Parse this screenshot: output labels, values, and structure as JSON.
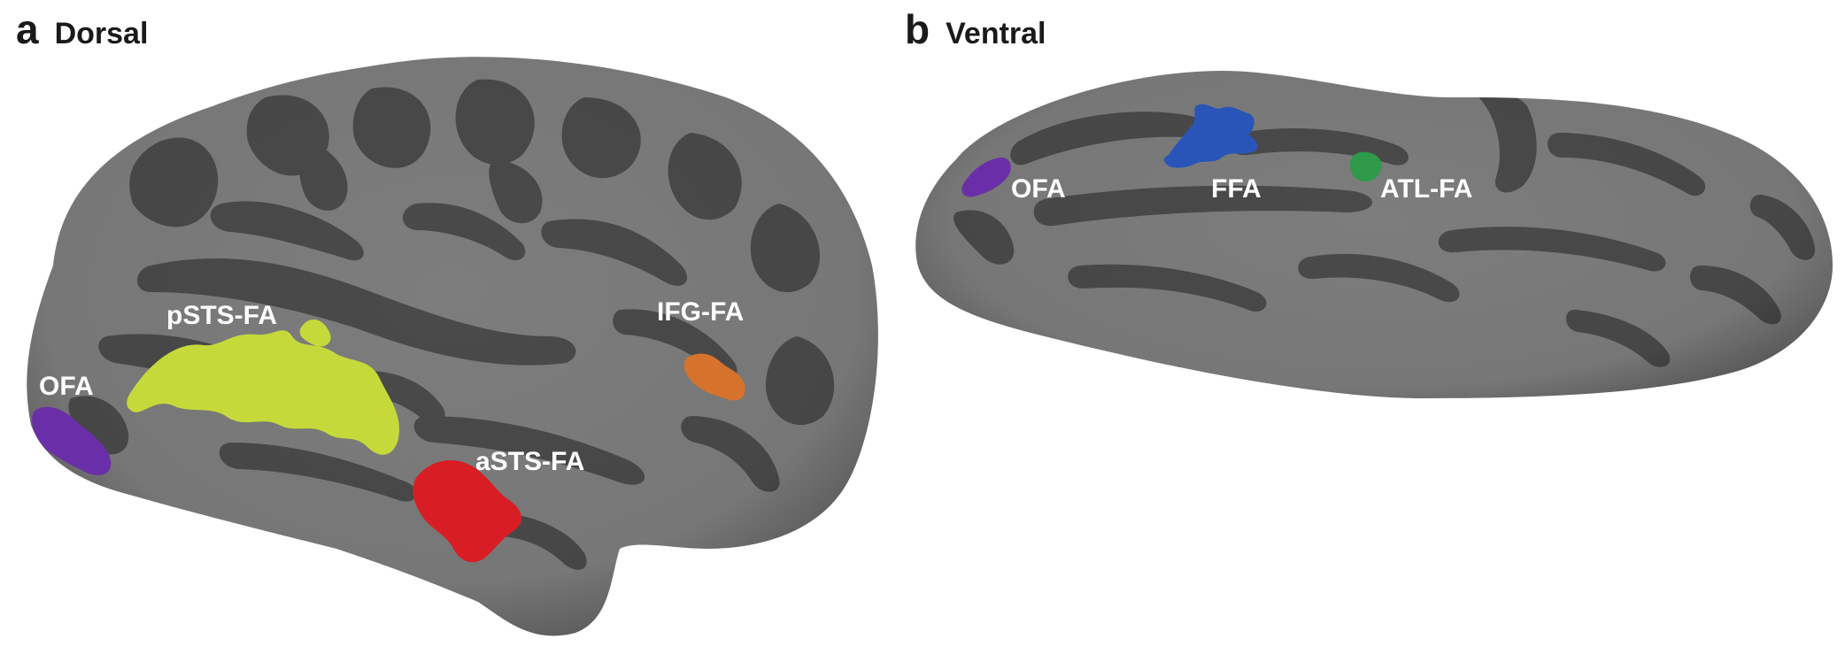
{
  "panels": [
    {
      "letter": "a",
      "title": "Dorsal",
      "regions": [
        {
          "label": "OFA",
          "color": "#6a2fa8"
        },
        {
          "label": "pSTS-FA",
          "color": "#c5da3a"
        },
        {
          "label": "aSTS-FA",
          "color": "#d81e24"
        },
        {
          "label": "IFG-FA",
          "color": "#d5732d"
        }
      ]
    },
    {
      "letter": "b",
      "title": "Ventral",
      "regions": [
        {
          "label": "OFA",
          "color": "#6a2fa8"
        },
        {
          "label": "FFA",
          "color": "#2a55b8"
        },
        {
          "label": "ATL-FA",
          "color": "#2e9a4a"
        }
      ]
    }
  ],
  "colors": {
    "cortex_gyri": "#7d7d7d",
    "cortex_sulci": "#4a4a4a",
    "background": "#ffffff"
  }
}
